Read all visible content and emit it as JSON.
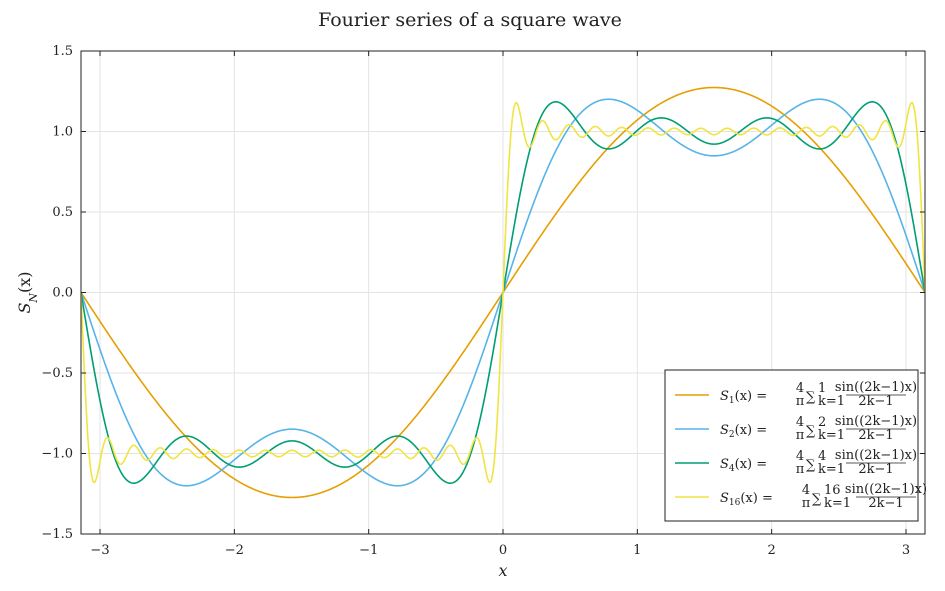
{
  "chart_data": {
    "type": "line",
    "title": "Fourier series of a square wave",
    "xlabel": "x",
    "ylabel": "S_N(x)",
    "xlim": [
      -3.14159,
      3.14159
    ],
    "ylim": [
      -1.5,
      1.5
    ],
    "xticks": [
      -3,
      -2,
      -1,
      0,
      1,
      2,
      3
    ],
    "xtick_labels": [
      "−3",
      "−2",
      "−1",
      "0",
      "1",
      "2",
      "3"
    ],
    "yticks": [
      -1.5,
      -1.0,
      -0.5,
      0.0,
      0.5,
      1.0,
      1.5
    ],
    "ytick_labels": [
      "−1.5",
      "−1.0",
      "−0.5",
      "0.0",
      "0.5",
      "1.0",
      "1.5"
    ],
    "grid": true,
    "legend_position": "bottom-right",
    "function": "S_N(x) = (4/pi) * sum_{k=1}^{N} sin((2k-1)x)/(2k-1)",
    "series": [
      {
        "name": "S_1(x)",
        "N": 1,
        "color": "#E69F00"
      },
      {
        "name": "S_2(x)",
        "N": 2,
        "color": "#56B4E9"
      },
      {
        "name": "S_4(x)",
        "N": 4,
        "color": "#009E73"
      },
      {
        "name": "S_16(x)",
        "N": 16,
        "color": "#F0E442"
      }
    ],
    "key_values": {
      "S_1_peak": [
        1.5708,
        1.273
      ],
      "S_2_peaks": [
        [
          0.785,
          1.2
        ],
        [
          2.356,
          1.2
        ]
      ],
      "S_4_peaks": [
        [
          0.393,
          1.18
        ],
        [
          2.749,
          1.18
        ]
      ],
      "S_16_peaks": [
        [
          0.098,
          1.18
        ],
        [
          3.044,
          1.18
        ]
      ]
    }
  },
  "legend": {
    "labels": [
      {
        "sub": "1",
        "upper": "1"
      },
      {
        "sub": "2",
        "upper": "2"
      },
      {
        "sub": "4",
        "upper": "4"
      },
      {
        "sub": "16",
        "upper": "16"
      }
    ],
    "lhs_prefix": "S",
    "rhs_eq": "(x) =",
    "frac_num": "4",
    "frac_den": "π",
    "sum_sym": "∑",
    "lower_index": "k=1",
    "term_num": "sin((2k−1)x)",
    "term_den": "2k−1"
  }
}
